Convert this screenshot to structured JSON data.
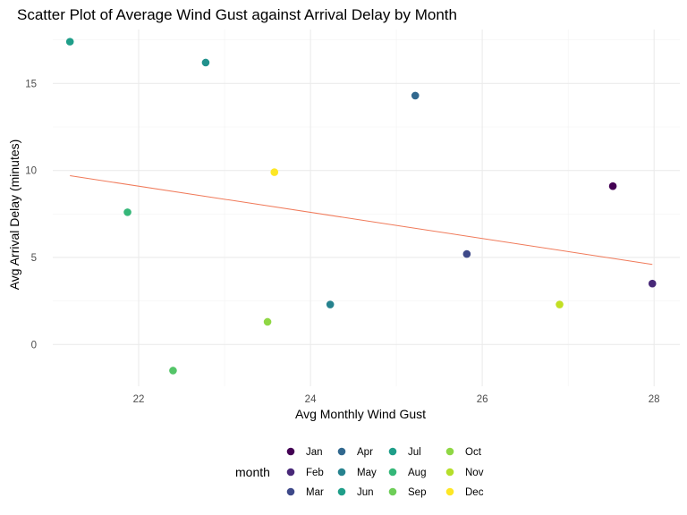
{
  "chart_data": {
    "type": "scatter",
    "title": "Scatter Plot of Average Wind Gust against Arrival Delay by Month",
    "xlabel": "Avg Monthly Wind Gust",
    "ylabel": "Avg Arrival Delay (minutes)",
    "xlim": [
      21.0,
      28.3
    ],
    "ylim": [
      -2.4,
      18.1
    ],
    "x_ticks": [
      22,
      24,
      26,
      28
    ],
    "y_ticks": [
      0,
      5,
      10,
      15
    ],
    "x_tick_labels": [
      "22",
      "24",
      "26",
      "28"
    ],
    "y_tick_labels": [
      "0",
      "5",
      "10",
      "15"
    ],
    "grid": true,
    "legend": {
      "title": "month",
      "position": "bottom",
      "entries": [
        {
          "label": "Jan",
          "color": "#440154"
        },
        {
          "label": "Feb",
          "color": "#482878"
        },
        {
          "label": "Mar",
          "color": "#3e4989"
        },
        {
          "label": "Apr",
          "color": "#31688e"
        },
        {
          "label": "May",
          "color": "#26828e"
        },
        {
          "label": "Jun",
          "color": "#1f9e89"
        },
        {
          "label": "Jul",
          "color": "#1f9e89"
        },
        {
          "label": "Aug",
          "color": "#35b779"
        },
        {
          "label": "Sep",
          "color": "#6ece58"
        },
        {
          "label": "Oct",
          "color": "#8fd744"
        },
        {
          "label": "Nov",
          "color": "#b5de2b"
        },
        {
          "label": "Dec",
          "color": "#fde725"
        }
      ]
    },
    "points": [
      {
        "month": "Jan",
        "x": 27.52,
        "y": 9.1,
        "color": "#440154"
      },
      {
        "month": "Feb",
        "x": 27.98,
        "y": 3.5,
        "color": "#482878"
      },
      {
        "month": "Mar",
        "x": 25.82,
        "y": 5.2,
        "color": "#3e4989"
      },
      {
        "month": "Apr",
        "x": 25.22,
        "y": 14.3,
        "color": "#31688e"
      },
      {
        "month": "May",
        "x": 24.23,
        "y": 2.3,
        "color": "#26828e"
      },
      {
        "month": "Jun",
        "x": 22.78,
        "y": 16.2,
        "color": "#21918c"
      },
      {
        "month": "Jul",
        "x": 21.2,
        "y": 17.4,
        "color": "#1f9e89"
      },
      {
        "month": "Aug",
        "x": 21.87,
        "y": 7.6,
        "color": "#35b779"
      },
      {
        "month": "Sep",
        "x": 22.4,
        "y": -1.5,
        "color": "#54c568"
      },
      {
        "month": "Oct",
        "x": 23.5,
        "y": 1.3,
        "color": "#8fd744"
      },
      {
        "month": "Nov",
        "x": 26.9,
        "y": 2.3,
        "color": "#c2df23"
      },
      {
        "month": "Dec",
        "x": 23.58,
        "y": 9.9,
        "color": "#fde725"
      }
    ],
    "trend_line": {
      "x": [
        21.2,
        27.98
      ],
      "y": [
        9.7,
        4.6
      ],
      "color": "#f07a5a"
    }
  }
}
